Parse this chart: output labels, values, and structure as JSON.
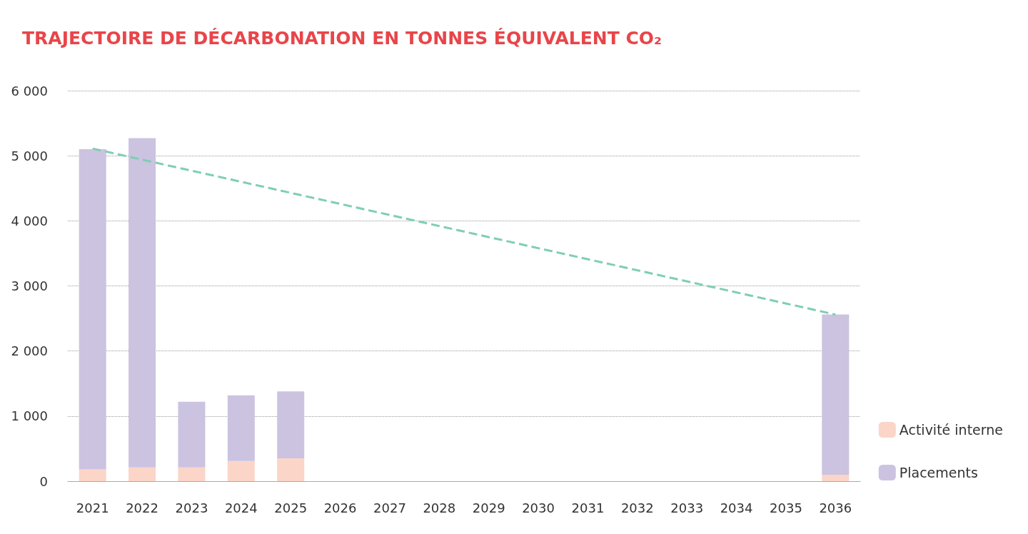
{
  "chart_data": {
    "type": "bar",
    "title": "TRAJECTOIRE DE DÉCARBONATION EN TONNES ÉQUIVALENT CO₂",
    "stacked": true,
    "categories": [
      "2021",
      "2022",
      "2023",
      "2024",
      "2025",
      "2026",
      "2027",
      "2028",
      "2029",
      "2030",
      "2031",
      "2032",
      "2033",
      "2034",
      "2035",
      "2036"
    ],
    "series": [
      {
        "name": "Activité interne",
        "color": "#fbd5c8",
        "values": [
          180,
          210,
          210,
          310,
          350,
          null,
          null,
          null,
          null,
          null,
          null,
          null,
          null,
          null,
          null,
          100
        ]
      },
      {
        "name": "Placements",
        "color": "#cbc3e0",
        "values": [
          4920,
          5060,
          1010,
          1010,
          1030,
          null,
          null,
          null,
          null,
          null,
          null,
          null,
          null,
          null,
          null,
          2460
        ]
      },
      {
        "type": "line",
        "color": "#7fcfb0",
        "line_style": "dashed",
        "marker": "none",
        "values": [
          5110,
          null,
          null,
          null,
          null,
          null,
          null,
          null,
          null,
          null,
          null,
          null,
          null,
          null,
          null,
          2560
        ]
      }
    ],
    "ylim": [
      0,
      6000
    ],
    "yticks": [
      0,
      {
        "value": 1000,
        "label": "1 000"
      },
      {
        "value": 2000,
        "label": "2 000"
      },
      {
        "value": 3000,
        "label": "3 000"
      },
      {
        "value": 4000,
        "label": "4 000"
      },
      {
        "value": 5000,
        "label": "5 000"
      },
      {
        "value": 6000,
        "label": "6 000"
      }
    ],
    "grid": "y",
    "legend": "bottom right"
  }
}
